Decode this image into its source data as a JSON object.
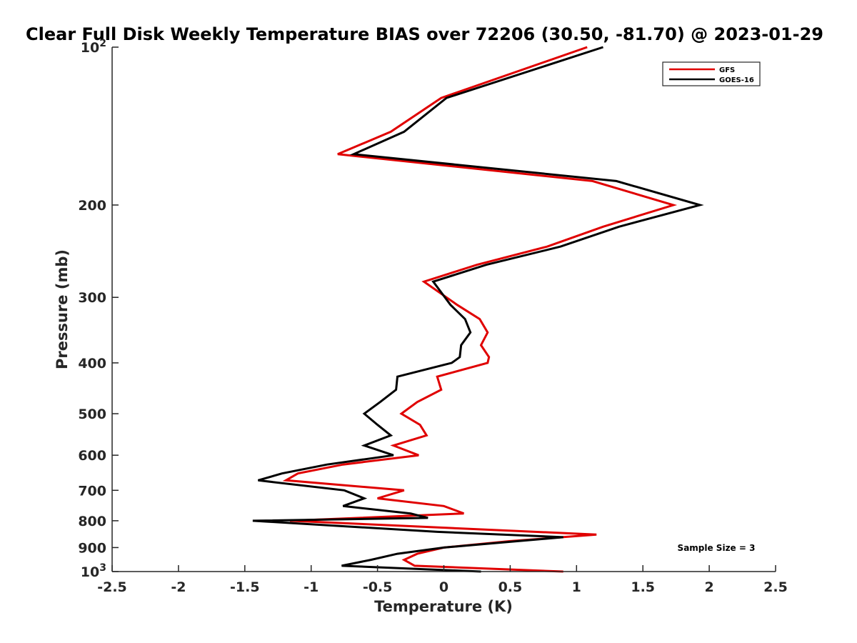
{
  "chart_data": {
    "type": "line",
    "title": "Clear Full Disk Weekly Temperature BIAS over 72206 (30.50, -81.70) @ 2023-01-29",
    "xlabel": "Temperature (K)",
    "ylabel": "Pressure (mb)",
    "xlim": [
      -2.5,
      2.5
    ],
    "ylim": [
      100,
      1000
    ],
    "y_scale": "log",
    "y_reversed": true,
    "grid": false,
    "legend_position": "top-right",
    "x_ticks": [
      -2.5,
      -2,
      -1.5,
      -1,
      -0.5,
      0,
      0.5,
      1,
      1.5,
      2,
      2.5
    ],
    "x_tick_labels": [
      "-2.5",
      "-2",
      "-1.5",
      "-1",
      "-0.5",
      "0",
      "0.5",
      "1",
      "1.5",
      "2",
      "2.5"
    ],
    "y_ticks": [
      100,
      200,
      300,
      400,
      500,
      600,
      700,
      800,
      900,
      1000
    ],
    "y_tick_labels": [
      {
        "base": "10",
        "exp": "2"
      },
      {
        "base": "200",
        "exp": ""
      },
      {
        "base": "300",
        "exp": ""
      },
      {
        "base": "400",
        "exp": ""
      },
      {
        "base": "500",
        "exp": ""
      },
      {
        "base": "600",
        "exp": ""
      },
      {
        "base": "700",
        "exp": ""
      },
      {
        "base": "800",
        "exp": ""
      },
      {
        "base": "900",
        "exp": ""
      },
      {
        "base": "10",
        "exp": "3"
      }
    ],
    "annotation": "Sample Size = 3",
    "series": [
      {
        "name": "GFS",
        "color": "#e00000",
        "points": [
          [
            1.08,
            100
          ],
          [
            -0.02,
            125
          ],
          [
            -0.4,
            145
          ],
          [
            -0.8,
            160
          ],
          [
            1.12,
            180
          ],
          [
            1.73,
            200
          ],
          [
            1.2,
            220
          ],
          [
            0.78,
            240
          ],
          [
            0.25,
            260
          ],
          [
            -0.15,
            280
          ],
          [
            0.1,
            310
          ],
          [
            0.27,
            330
          ],
          [
            0.33,
            350
          ],
          [
            0.28,
            370
          ],
          [
            0.34,
            390
          ],
          [
            0.33,
            400
          ],
          [
            -0.05,
            425
          ],
          [
            -0.02,
            450
          ],
          [
            -0.2,
            475
          ],
          [
            -0.32,
            500
          ],
          [
            -0.18,
            525
          ],
          [
            -0.13,
            550
          ],
          [
            -0.38,
            575
          ],
          [
            -0.19,
            600
          ],
          [
            -0.76,
            625
          ],
          [
            -1.1,
            650
          ],
          [
            -1.19,
            670
          ],
          [
            -0.3,
            700
          ],
          [
            -0.5,
            725
          ],
          [
            0,
            750
          ],
          [
            0.15,
            775
          ],
          [
            -1.16,
            800
          ],
          [
            1.15,
            850
          ],
          [
            0.5,
            875
          ],
          [
            0,
            900
          ],
          [
            -0.2,
            925
          ],
          [
            -0.3,
            950
          ],
          [
            -0.22,
            975
          ],
          [
            0.9,
            1000
          ]
        ]
      },
      {
        "name": "GOES-16",
        "color": "#000000",
        "points": [
          [
            1.2,
            100
          ],
          [
            0.02,
            125
          ],
          [
            -0.3,
            145
          ],
          [
            -0.68,
            160
          ],
          [
            1.3,
            180
          ],
          [
            1.93,
            200
          ],
          [
            1.32,
            220
          ],
          [
            0.88,
            240
          ],
          [
            0.32,
            260
          ],
          [
            -0.08,
            280
          ],
          [
            0.05,
            310
          ],
          [
            0.16,
            330
          ],
          [
            0.2,
            350
          ],
          [
            0.13,
            370
          ],
          [
            0.12,
            390
          ],
          [
            0.06,
            400
          ],
          [
            -0.35,
            425
          ],
          [
            -0.36,
            450
          ],
          [
            -0.48,
            475
          ],
          [
            -0.6,
            500
          ],
          [
            -0.5,
            525
          ],
          [
            -0.4,
            550
          ],
          [
            -0.6,
            575
          ],
          [
            -0.38,
            600
          ],
          [
            -0.88,
            625
          ],
          [
            -1.22,
            650
          ],
          [
            -1.4,
            670
          ],
          [
            -0.75,
            700
          ],
          [
            -0.6,
            725
          ],
          [
            -0.76,
            750
          ],
          [
            -0.25,
            775
          ],
          [
            -0.12,
            790
          ],
          [
            -1.44,
            800
          ],
          [
            -0.05,
            840
          ],
          [
            0.9,
            860
          ],
          [
            0,
            900
          ],
          [
            -0.35,
            925
          ],
          [
            -0.55,
            950
          ],
          [
            -0.77,
            975
          ],
          [
            0.28,
            1000
          ]
        ]
      }
    ]
  }
}
